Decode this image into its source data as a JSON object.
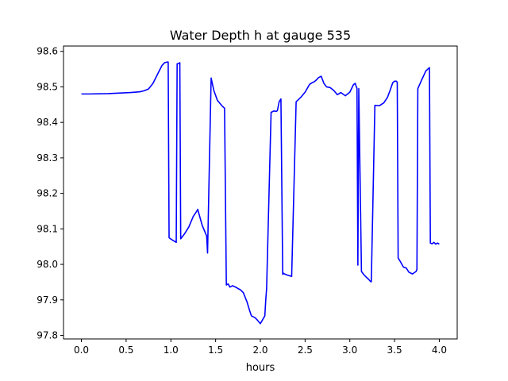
{
  "chart_data": {
    "type": "line",
    "title": "Water Depth h at gauge 535",
    "xlabel": "hours",
    "ylabel": "",
    "xlim": [
      -0.2,
      4.2
    ],
    "ylim": [
      97.79,
      98.615
    ],
    "xticks": [
      0.0,
      0.5,
      1.0,
      1.5,
      2.0,
      2.5,
      3.0,
      3.5,
      4.0
    ],
    "xtick_labels": [
      "0.0",
      "0.5",
      "1.0",
      "1.5",
      "2.0",
      "2.5",
      "3.0",
      "3.5",
      "4.0"
    ],
    "yticks": [
      97.8,
      97.9,
      98.0,
      98.1,
      98.2,
      98.3,
      98.4,
      98.5,
      98.6
    ],
    "ytick_labels": [
      "97.8",
      "97.9",
      "98.0",
      "98.1",
      "98.2",
      "98.3",
      "98.4",
      "98.5",
      "98.6"
    ],
    "grid": false,
    "series": [
      {
        "color": "#0000ff",
        "x": [
          0.0,
          0.1,
          0.3,
          0.55,
          0.65,
          0.7,
          0.75,
          0.8,
          0.85,
          0.9,
          0.93,
          0.96,
          0.97,
          0.98,
          1.02,
          1.06,
          1.07,
          1.09,
          1.1,
          1.11,
          1.15,
          1.2,
          1.25,
          1.29,
          1.3,
          1.35,
          1.4,
          1.41,
          1.45,
          1.48,
          1.52,
          1.57,
          1.59,
          1.6,
          1.62,
          1.64,
          1.66,
          1.69,
          1.73,
          1.75,
          1.78,
          1.81,
          1.85,
          1.88,
          1.9,
          1.94,
          1.96,
          1.97,
          2.0,
          2.05,
          2.06,
          2.07,
          2.12,
          2.15,
          2.18,
          2.19,
          2.2,
          2.21,
          2.23,
          2.25,
          2.26,
          2.27,
          2.3,
          2.35,
          2.4,
          2.45,
          2.5,
          2.55,
          2.58,
          2.6,
          2.62,
          2.65,
          2.68,
          2.71,
          2.74,
          2.78,
          2.82,
          2.86,
          2.9,
          2.95,
          3.0,
          3.04,
          3.06,
          3.07,
          3.08,
          3.09,
          3.1,
          3.13,
          3.16,
          3.18,
          3.21,
          3.23,
          3.24,
          3.28,
          3.33,
          3.38,
          3.42,
          3.45,
          3.48,
          3.5,
          3.52,
          3.53,
          3.54,
          3.56,
          3.6,
          3.63,
          3.66,
          3.7,
          3.74,
          3.75,
          3.76,
          3.8,
          3.85,
          3.88,
          3.89,
          3.9,
          3.92,
          3.94,
          3.96,
          3.98,
          4.0
        ],
        "y": [
          98.48,
          98.48,
          98.481,
          98.484,
          98.486,
          98.489,
          98.494,
          98.51,
          98.535,
          98.56,
          98.568,
          98.57,
          98.57,
          98.075,
          98.068,
          98.062,
          98.565,
          98.566,
          98.568,
          98.072,
          98.085,
          98.105,
          98.135,
          98.15,
          98.155,
          98.11,
          98.08,
          98.032,
          98.525,
          98.49,
          98.462,
          98.447,
          98.442,
          98.44,
          97.942,
          97.945,
          97.936,
          97.94,
          97.935,
          97.932,
          97.928,
          97.92,
          97.895,
          97.87,
          97.855,
          97.85,
          97.845,
          97.842,
          97.833,
          97.855,
          97.898,
          97.932,
          98.428,
          98.432,
          98.431,
          98.433,
          98.445,
          98.458,
          98.466,
          97.972,
          97.975,
          97.973,
          97.97,
          97.966,
          98.458,
          98.47,
          98.485,
          98.507,
          98.512,
          98.514,
          98.518,
          98.526,
          98.53,
          98.51,
          98.5,
          98.498,
          98.49,
          98.478,
          98.484,
          98.475,
          98.485,
          98.506,
          98.51,
          98.502,
          98.496,
          97.998,
          98.495,
          97.98,
          97.97,
          97.965,
          97.958,
          97.952,
          97.951,
          98.448,
          98.447,
          98.455,
          98.47,
          98.49,
          98.512,
          98.516,
          98.516,
          98.513,
          98.018,
          98.01,
          97.992,
          97.99,
          97.978,
          97.973,
          97.98,
          97.986,
          98.495,
          98.518,
          98.545,
          98.552,
          98.554,
          98.06,
          98.058,
          98.062,
          98.057,
          98.06,
          98.057
        ]
      }
    ]
  }
}
